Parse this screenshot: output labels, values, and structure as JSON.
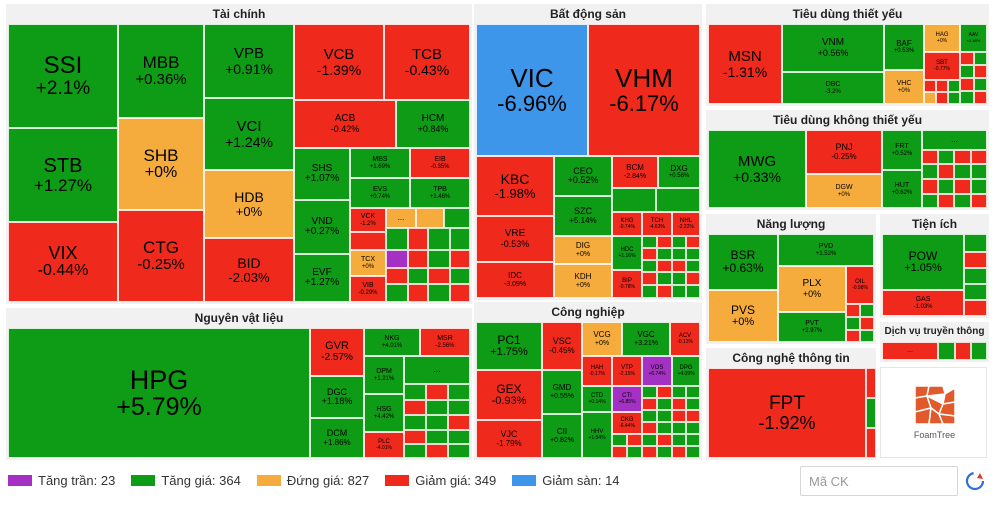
{
  "sectors": {
    "tai_chinh": "Tài chính",
    "bat_dong_san": "Bất động sản",
    "tieu_dung_thiet_yeu": "Tiêu dùng thiết yếu",
    "tieu_dung_khong_thiet_yeu": "Tiêu dùng không thiết yếu",
    "nguyen_vat_lieu": "Nguyên vật liệu",
    "cong_nghiep": "Công nghiệp",
    "nang_luong": "Năng lượng",
    "tien_ich": "Tiện ích",
    "dich_vu_truyen_thong": "Dịch vụ truyền thông",
    "cong_nghe_thong_tin": "Công nghệ thông tin"
  },
  "tiles": {
    "SSI": {
      "t": "SSI",
      "p": "+2.1%"
    },
    "STB": {
      "t": "STB",
      "p": "+1.27%"
    },
    "VIX": {
      "t": "VIX",
      "p": "-0.44%"
    },
    "MBB": {
      "t": "MBB",
      "p": "+0.36%"
    },
    "SHB": {
      "t": "SHB",
      "p": "+0%"
    },
    "CTG": {
      "t": "CTG",
      "p": "-0.25%"
    },
    "VPB": {
      "t": "VPB",
      "p": "+0.91%"
    },
    "VCI": {
      "t": "VCI",
      "p": "+1.24%"
    },
    "HDB": {
      "t": "HDB",
      "p": "+0%"
    },
    "BID": {
      "t": "BID",
      "p": "-2.03%"
    },
    "VCB": {
      "t": "VCB",
      "p": "-1.39%"
    },
    "TCB": {
      "t": "TCB",
      "p": "-0.43%"
    },
    "ACB": {
      "t": "ACB",
      "p": "-0.42%"
    },
    "HCM": {
      "t": "HCM",
      "p": "+0.84%"
    },
    "SHS": {
      "t": "SHS",
      "p": "+1.07%"
    },
    "VND": {
      "t": "VND",
      "p": "+0.27%"
    },
    "EVF": {
      "t": "EVF",
      "p": "+1.27%"
    },
    "MBS": {
      "t": "MBS",
      "p": "+1.69%"
    },
    "EIB": {
      "t": "EIB",
      "p": "-0.35%"
    },
    "EVS": {
      "t": "EVS",
      "p": "+0.74%"
    },
    "TPB": {
      "t": "TPB",
      "p": "+1.46%"
    },
    "VCK": {
      "t": "VCK",
      "p": "-1.2%"
    },
    "TCX": {
      "t": "TCX",
      "p": "+0%"
    },
    "VIB": {
      "t": "VIB",
      "p": "-0.29%"
    },
    "VIC": {
      "t": "VIC",
      "p": "-6.96%"
    },
    "VHM": {
      "t": "VHM",
      "p": "-6.17%"
    },
    "KBC": {
      "t": "KBC",
      "p": "-1.98%"
    },
    "VRE": {
      "t": "VRE",
      "p": "-0.53%"
    },
    "IDC": {
      "t": "IDC",
      "p": "-3.09%"
    },
    "CEO": {
      "t": "CEO",
      "p": "+0.52%"
    },
    "SZC": {
      "t": "SZC",
      "p": "+5.14%"
    },
    "DIG": {
      "t": "DIG",
      "p": "+0%"
    },
    "KDH": {
      "t": "KDH",
      "p": "+0%"
    },
    "BCM": {
      "t": "BCM",
      "p": "-2.84%"
    },
    "DXG": {
      "t": "DXG",
      "p": "+0.56%"
    },
    "KHG": {
      "t": "KHG",
      "p": "-0.74%"
    },
    "HDC": {
      "t": "HDC",
      "p": "+1.16%"
    },
    "BIP": {
      "t": "BIP",
      "p": "-0.78%"
    },
    "TCH": {
      "t": "TCH",
      "p": "-4.63%"
    },
    "NHL": {
      "t": "NHL",
      "p": "-2.22%"
    },
    "MSN": {
      "t": "MSN",
      "p": "-1.31%"
    },
    "VNM": {
      "t": "VNM",
      "p": "+0.56%"
    },
    "DBC": {
      "t": "DBC",
      "p": "-3.2%"
    },
    "BAF": {
      "t": "BAF",
      "p": "+0.53%"
    },
    "VHC": {
      "t": "VHC",
      "p": "+0%"
    },
    "HAG": {
      "t": "HAG",
      "p": "+0%"
    },
    "SBT": {
      "t": "SBT",
      "p": "-0.77%"
    },
    "AAV": {
      "t": "AAV",
      "p": "+2.48%"
    },
    "MWG": {
      "t": "MWG",
      "p": "+0.33%"
    },
    "PNJ": {
      "t": "PNJ",
      "p": "-0.25%"
    },
    "DGW": {
      "t": "DGW",
      "p": "+0%"
    },
    "FRT": {
      "t": "FRT",
      "p": "+0.52%"
    },
    "HUT": {
      "t": "HUT",
      "p": "+0.62%"
    },
    "HPG": {
      "t": "HPG",
      "p": "+5.79%"
    },
    "GVR": {
      "t": "GVR",
      "p": "-2.57%"
    },
    "DGC": {
      "t": "DGC",
      "p": "+1.18%"
    },
    "DCM": {
      "t": "DCM",
      "p": "+1.86%"
    },
    "NKG": {
      "t": "NKG",
      "p": "+4.01%"
    },
    "MSR": {
      "t": "MSR",
      "p": "-2.56%"
    },
    "DPM": {
      "t": "DPM",
      "p": "+1.21%"
    },
    "HSG": {
      "t": "HSG",
      "p": "+4.42%"
    },
    "PLC": {
      "t": "PLC",
      "p": "-4.01%"
    },
    "PC1": {
      "t": "PC1",
      "p": "+1.75%"
    },
    "GEX": {
      "t": "GEX",
      "p": "-0.93%"
    },
    "VJC": {
      "t": "VJC",
      "p": "-1.79%"
    },
    "VSC": {
      "t": "VSC",
      "p": "-0.45%"
    },
    "GMD": {
      "t": "GMD",
      "p": "+0.55%"
    },
    "CII": {
      "t": "CII",
      "p": "+0.82%"
    },
    "VCG": {
      "t": "VCG",
      "p": "+0%"
    },
    "VGC": {
      "t": "VGC",
      "p": "+3.21%"
    },
    "ACV": {
      "t": "ACV",
      "p": "-0.13%"
    },
    "HAH": {
      "t": "HAH",
      "p": "-0.17%"
    },
    "VTP": {
      "t": "VTP",
      "p": "-2.15%"
    },
    "VOS": {
      "t": "VOS",
      "p": "+6.74%"
    },
    "DPG": {
      "t": "DPG",
      "p": "+4.09%"
    },
    "CTD": {
      "t": "CTD",
      "p": "+0.14%"
    },
    "CTI": {
      "t": "CTI",
      "p": "+6.85%"
    },
    "CKG": {
      "t": "CKG",
      "p": "-6.44%"
    },
    "HHV": {
      "t": "HHV",
      "p": "+1.54%"
    },
    "BSR": {
      "t": "BSR",
      "p": "+0.63%"
    },
    "PVS": {
      "t": "PVS",
      "p": "+0%"
    },
    "PVD": {
      "t": "PVD",
      "p": "+1.52%"
    },
    "PLX": {
      "t": "PLX",
      "p": "+0%"
    },
    "PVT": {
      "t": "PVT",
      "p": "+2.97%"
    },
    "OIL": {
      "t": "OIL",
      "p": "-0.98%"
    },
    "POW": {
      "t": "POW",
      "p": "+1.05%"
    },
    "GAS": {
      "t": "GAS",
      "p": "-1.03%"
    },
    "FPT": {
      "t": "FPT",
      "p": "-1.92%"
    }
  },
  "more": "...",
  "legend": {
    "ceiling": "Tăng trần: 23",
    "up": "Tăng giá: 364",
    "flat": "Đứng giá: 827",
    "down": "Giảm giá: 349",
    "floor": "Giảm sàn: 14"
  },
  "search": {
    "placeholder": "Mã CK"
  },
  "logo": {
    "label": "FoamTree"
  },
  "colors": {
    "ceiling": "#a531c4",
    "up": "#0e9b15",
    "flat": "#f6ac3c",
    "down": "#ef2a1d",
    "floor": "#3d96ea"
  }
}
